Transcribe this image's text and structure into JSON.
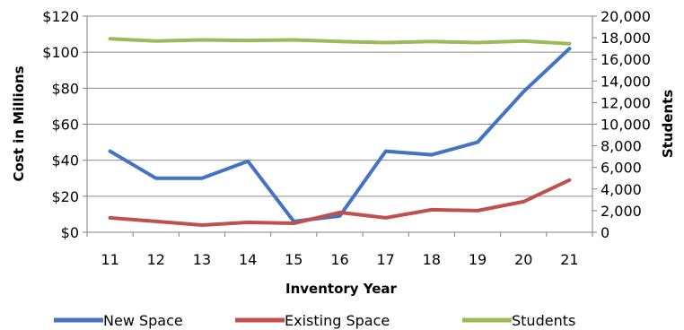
{
  "chart_data": {
    "type": "line",
    "categories": [
      "11",
      "12",
      "13",
      "14",
      "15",
      "16",
      "17",
      "18",
      "19",
      "20",
      "21"
    ],
    "xlabel": "Inventory Year",
    "ylabel_left": "Cost in Millions",
    "ylabel_right": "Students",
    "ylim_left": [
      0,
      120
    ],
    "ylim_right": [
      0,
      20000
    ],
    "yticks_left": [
      "$0",
      "$20",
      "$40",
      "$60",
      "$80",
      "$100",
      "$120"
    ],
    "yticks_right": [
      "0",
      "2,000",
      "4,000",
      "6,000",
      "8,000",
      "10,000",
      "12,000",
      "14,000",
      "16,000",
      "18,000",
      "20,000"
    ],
    "grid": "horizontal",
    "legend_position": "bottom",
    "series": [
      {
        "name": "New Space",
        "axis": "left",
        "color": "#4472C4",
        "values": [
          45,
          30,
          30,
          39.5,
          6,
          9,
          45,
          43,
          50,
          78,
          102
        ]
      },
      {
        "name": "Existing Space",
        "axis": "left",
        "color": "#C0504D",
        "values": [
          8,
          6,
          4,
          5.5,
          5,
          11,
          8,
          12.5,
          12,
          17,
          29
        ]
      },
      {
        "name": "Students",
        "axis": "right",
        "color": "#9BBB59",
        "values": [
          17900,
          17700,
          17800,
          17750,
          17800,
          17650,
          17550,
          17650,
          17550,
          17700,
          17450
        ]
      }
    ]
  }
}
